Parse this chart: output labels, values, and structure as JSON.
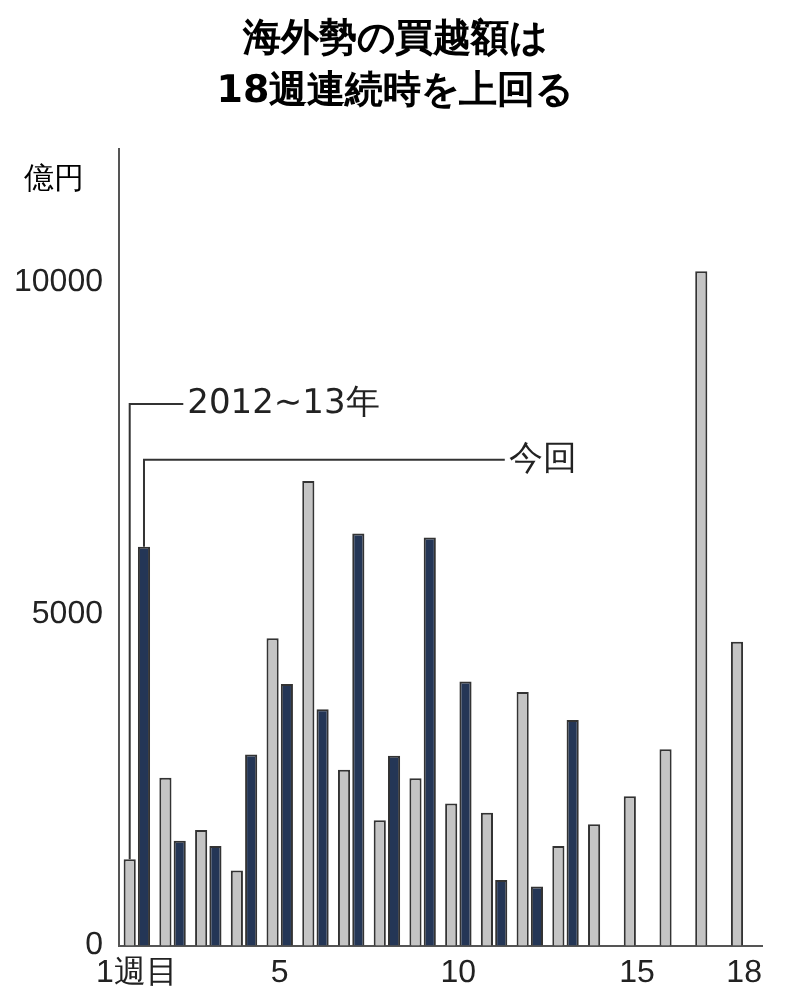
{
  "chart_data": {
    "type": "bar",
    "title": "海外勢の買越額は\n18週連続時を上回る",
    "ylabel": "億円",
    "categories": [
      "1週目",
      null,
      null,
      null,
      "5",
      null,
      null,
      null,
      null,
      "10",
      null,
      null,
      null,
      null,
      "15",
      null,
      null,
      "18"
    ],
    "series": [
      {
        "name": "2012~13年",
        "color": "#c4c4c4",
        "values": [
          1300,
          2530,
          1740,
          1130,
          4630,
          7000,
          2650,
          1890,
          2520,
          2140,
          2000,
          3820,
          1500,
          1830,
          2250,
          2960,
          10160,
          4580
        ]
      },
      {
        "name": "今回",
        "color": "#243656",
        "values": [
          6010,
          1580,
          1500,
          2880,
          3940,
          3560,
          6210,
          2860,
          6150,
          3980,
          990,
          890,
          3400,
          null,
          null,
          null,
          null,
          null
        ]
      }
    ],
    "ylim": [
      0,
      12000
    ],
    "yticks": [
      0,
      5000,
      10000
    ],
    "grid": false,
    "legend": false
  }
}
